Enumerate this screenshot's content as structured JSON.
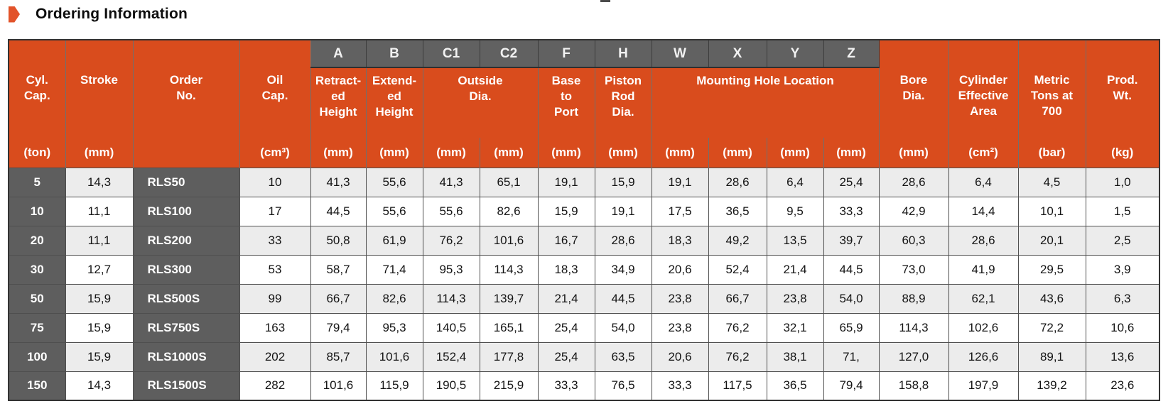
{
  "title": "Ordering Information",
  "colors": {
    "accent_orange": "#d94c1d",
    "arrow_orange": "#e2532a",
    "letter_gray": "#616161",
    "dark_cell_gray": "#5e5e5e",
    "stripe_gray": "#ececec"
  },
  "table": {
    "letters": [
      "A",
      "B",
      "C1",
      "C2",
      "F",
      "H",
      "W",
      "X",
      "Y",
      "Z"
    ],
    "groups": {
      "outside_dia_label": "Outside\nDia.",
      "mounting_label": "Mounting Hole Location"
    },
    "columns": [
      {
        "id": "cyl-cap",
        "label": "Cyl.\nCap.",
        "unit": "(ton)"
      },
      {
        "id": "stroke",
        "label": "Stroke",
        "unit": "(mm)"
      },
      {
        "id": "order-no",
        "label": "Order\nNo.",
        "unit": ""
      },
      {
        "id": "oil-cap",
        "label": "Oil\nCap.",
        "unit": "(cm³)"
      },
      {
        "id": "a-retracted-height",
        "label": "Retract-\ned\nHeight",
        "unit": "(mm)"
      },
      {
        "id": "b-extended-height",
        "label": "Extend-\ned\nHeight",
        "unit": "(mm)"
      },
      {
        "id": "c1-outside-dia",
        "label": "",
        "unit": "(mm)"
      },
      {
        "id": "c2-outside-dia",
        "label": "",
        "unit": "(mm)"
      },
      {
        "id": "f-base-to-port",
        "label": "Base\nto\nPort",
        "unit": "(mm)"
      },
      {
        "id": "h-piston-rod-dia",
        "label": "Piston\nRod\nDia.",
        "unit": "(mm)"
      },
      {
        "id": "w-mounting",
        "label": "",
        "unit": "(mm)"
      },
      {
        "id": "x-mounting",
        "label": "",
        "unit": "(mm)"
      },
      {
        "id": "y-mounting",
        "label": "",
        "unit": "(mm)"
      },
      {
        "id": "z-mounting",
        "label": "",
        "unit": "(mm)"
      },
      {
        "id": "bore-dia",
        "label": "Bore\nDia.",
        "unit": "(mm)"
      },
      {
        "id": "cylinder-effective-area",
        "label": "Cylinder\nEffective\nArea",
        "unit": "(cm²)"
      },
      {
        "id": "metric-tons",
        "label": "Metric\nTons at\n700",
        "unit": "(bar)"
      },
      {
        "id": "prod-wt",
        "label": "Prod.\nWt.",
        "unit": "(kg)"
      }
    ],
    "rows": [
      [
        "5",
        "14,3",
        "RLS50",
        "10",
        "41,3",
        "55,6",
        "41,3",
        "65,1",
        "19,1",
        "15,9",
        "19,1",
        "28,6",
        "6,4",
        "25,4",
        "28,6",
        "6,4",
        "4,5",
        "1,0"
      ],
      [
        "10",
        "11,1",
        "RLS100",
        "17",
        "44,5",
        "55,6",
        "55,6",
        "82,6",
        "15,9",
        "19,1",
        "17,5",
        "36,5",
        "9,5",
        "33,3",
        "42,9",
        "14,4",
        "10,1",
        "1,5"
      ],
      [
        "20",
        "11,1",
        "RLS200",
        "33",
        "50,8",
        "61,9",
        "76,2",
        "101,6",
        "16,7",
        "28,6",
        "18,3",
        "49,2",
        "13,5",
        "39,7",
        "60,3",
        "28,6",
        "20,1",
        "2,5"
      ],
      [
        "30",
        "12,7",
        "RLS300",
        "53",
        "58,7",
        "71,4",
        "95,3",
        "114,3",
        "18,3",
        "34,9",
        "20,6",
        "52,4",
        "21,4",
        "44,5",
        "73,0",
        "41,9",
        "29,5",
        "3,9"
      ],
      [
        "50",
        "15,9",
        "RLS500S",
        "99",
        "66,7",
        "82,6",
        "114,3",
        "139,7",
        "21,4",
        "44,5",
        "23,8",
        "66,7",
        "23,8",
        "54,0",
        "88,9",
        "62,1",
        "43,6",
        "6,3"
      ],
      [
        "75",
        "15,9",
        "RLS750S",
        "163",
        "79,4",
        "95,3",
        "140,5",
        "165,1",
        "25,4",
        "54,0",
        "23,8",
        "76,2",
        "32,1",
        "65,9",
        "114,3",
        "102,6",
        "72,2",
        "10,6"
      ],
      [
        "100",
        "15,9",
        "RLS1000S",
        "202",
        "85,7",
        "101,6",
        "152,4",
        "177,8",
        "25,4",
        "63,5",
        "20,6",
        "76,2",
        "38,1",
        "71,",
        "127,0",
        "126,6",
        "89,1",
        "13,6"
      ],
      [
        "150",
        "14,3",
        "RLS1500S",
        "282",
        "101,6",
        "115,9",
        "190,5",
        "215,9",
        "33,3",
        "76,5",
        "33,3",
        "117,5",
        "36,5",
        "79,4",
        "158,8",
        "197,9",
        "139,2",
        "23,6"
      ]
    ]
  }
}
